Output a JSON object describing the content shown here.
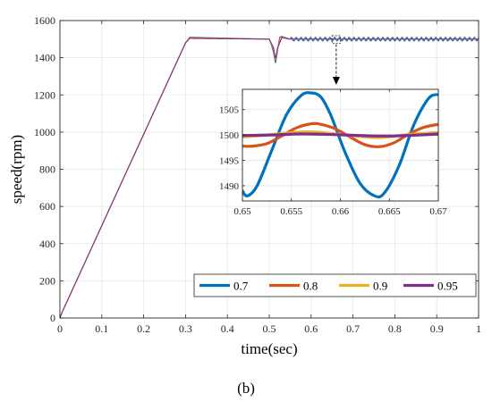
{
  "caption": "(b)",
  "chart_data": [
    {
      "type": "line",
      "title": "",
      "xlabel": "time(sec)",
      "ylabel": "speed(rpm)",
      "xlim": [
        0,
        1
      ],
      "ylim": [
        0,
        1600
      ],
      "xticks": [
        0,
        0.1,
        0.2,
        0.3,
        0.4,
        0.5,
        0.6,
        0.7,
        0.8,
        0.9,
        1
      ],
      "yticks": [
        0,
        200,
        400,
        600,
        800,
        1000,
        1200,
        1400,
        1600
      ],
      "xticklabels": [
        "0",
        "0.1",
        "0.2",
        "0.3",
        "0.4",
        "0.5",
        "0.6",
        "0.7",
        "0.8",
        "0.9",
        "1"
      ],
      "yticklabels": [
        "0",
        "200",
        "400",
        "600",
        "800",
        "1000",
        "1200",
        "1400",
        "1600"
      ],
      "grid": true,
      "legend_position": "bottom-right",
      "series": [
        {
          "name": "0.7",
          "color": "#0072BD",
          "x": [
            0,
            0.005,
            0.3,
            0.31,
            0.5,
            0.505,
            0.51,
            0.515,
            0.52,
            0.525,
            0.53,
            0.55,
            1
          ],
          "y": [
            0,
            30,
            1480,
            1510,
            1500,
            1470,
            1430,
            1370,
            1440,
            1510,
            1515,
            1500,
            1500
          ]
        },
        {
          "name": "0.8",
          "color": "#D95319",
          "x": [
            0,
            0.005,
            0.3,
            0.31,
            0.5,
            0.505,
            0.51,
            0.515,
            0.52,
            0.525,
            0.53,
            0.55,
            1
          ],
          "y": [
            0,
            30,
            1480,
            1508,
            1500,
            1475,
            1440,
            1380,
            1445,
            1508,
            1512,
            1500,
            1500
          ]
        },
        {
          "name": "0.9",
          "color": "#EDB120",
          "x": [
            0,
            0.005,
            0.3,
            0.31,
            0.5,
            0.51,
            0.515,
            0.52,
            0.53,
            0.55,
            1
          ],
          "y": [
            0,
            30,
            1480,
            1505,
            1500,
            1450,
            1390,
            1450,
            1510,
            1500,
            1500
          ]
        },
        {
          "name": "0.95",
          "color": "#7E2F8E",
          "x": [
            0,
            0.005,
            0.3,
            0.31,
            0.5,
            0.51,
            0.515,
            0.52,
            0.53,
            0.55,
            1
          ],
          "y": [
            0,
            30,
            1480,
            1504,
            1500,
            1455,
            1395,
            1455,
            1508,
            1500,
            1500
          ]
        }
      ],
      "steady_oscillation": {
        "start": 0.55,
        "period": 0.0115,
        "amplitudes": {
          "0.7": 10,
          "0.8": 2.2,
          "0.9": 0.5,
          "0.95": 0.25
        }
      }
    },
    {
      "type": "line",
      "title": "",
      "xlim": [
        0.65,
        0.67
      ],
      "ylim": [
        1487,
        1509
      ],
      "xticks": [
        0.65,
        0.655,
        0.66,
        0.665,
        0.67
      ],
      "yticks": [
        1490,
        1495,
        1500,
        1505
      ],
      "xticklabels": [
        "0.65",
        "0.655",
        "0.66",
        "0.665",
        "0.67"
      ],
      "yticklabels": [
        "1490",
        "1495",
        "1500",
        "1505"
      ],
      "grid": true,
      "series": [
        {
          "name": "0.7",
          "color": "#0072BD",
          "x": [
            0.65,
            0.6505,
            0.6515,
            0.653,
            0.6545,
            0.656,
            0.657,
            0.658,
            0.659,
            0.6605,
            0.662,
            0.6635,
            0.6645,
            0.666,
            0.6675,
            0.669,
            0.67
          ],
          "y": [
            1489,
            1488,
            1490,
            1497,
            1504,
            1507.8,
            1508.3,
            1507.5,
            1504,
            1496.5,
            1490.5,
            1488,
            1488.6,
            1494,
            1502,
            1507.2,
            1508
          ]
        },
        {
          "name": "0.8",
          "color": "#D95319",
          "x": [
            0.65,
            0.651,
            0.6525,
            0.654,
            0.6555,
            0.657,
            0.658,
            0.6595,
            0.661,
            0.6625,
            0.664,
            0.6655,
            0.667,
            0.6685,
            0.67
          ],
          "y": [
            1497.8,
            1497.8,
            1498.3,
            1499.8,
            1501.4,
            1502.2,
            1502.1,
            1501.2,
            1499.6,
            1498.1,
            1497.7,
            1498.5,
            1500.2,
            1501.5,
            1502.1
          ]
        },
        {
          "name": "0.9",
          "color": "#EDB120",
          "x": [
            0.65,
            0.653,
            0.656,
            0.658,
            0.661,
            0.664,
            0.667,
            0.67
          ],
          "y": [
            1499.6,
            1500.1,
            1500.6,
            1500.5,
            1499.9,
            1499.5,
            1500.1,
            1500.5
          ]
        },
        {
          "name": "0.95",
          "color": "#7E2F8E",
          "x": [
            0.65,
            0.653,
            0.656,
            0.659,
            0.662,
            0.665,
            0.668,
            0.67
          ],
          "y": [
            1499.9,
            1500,
            1500.2,
            1500.1,
            1499.9,
            1499.8,
            1500,
            1500.2
          ]
        }
      ]
    }
  ]
}
